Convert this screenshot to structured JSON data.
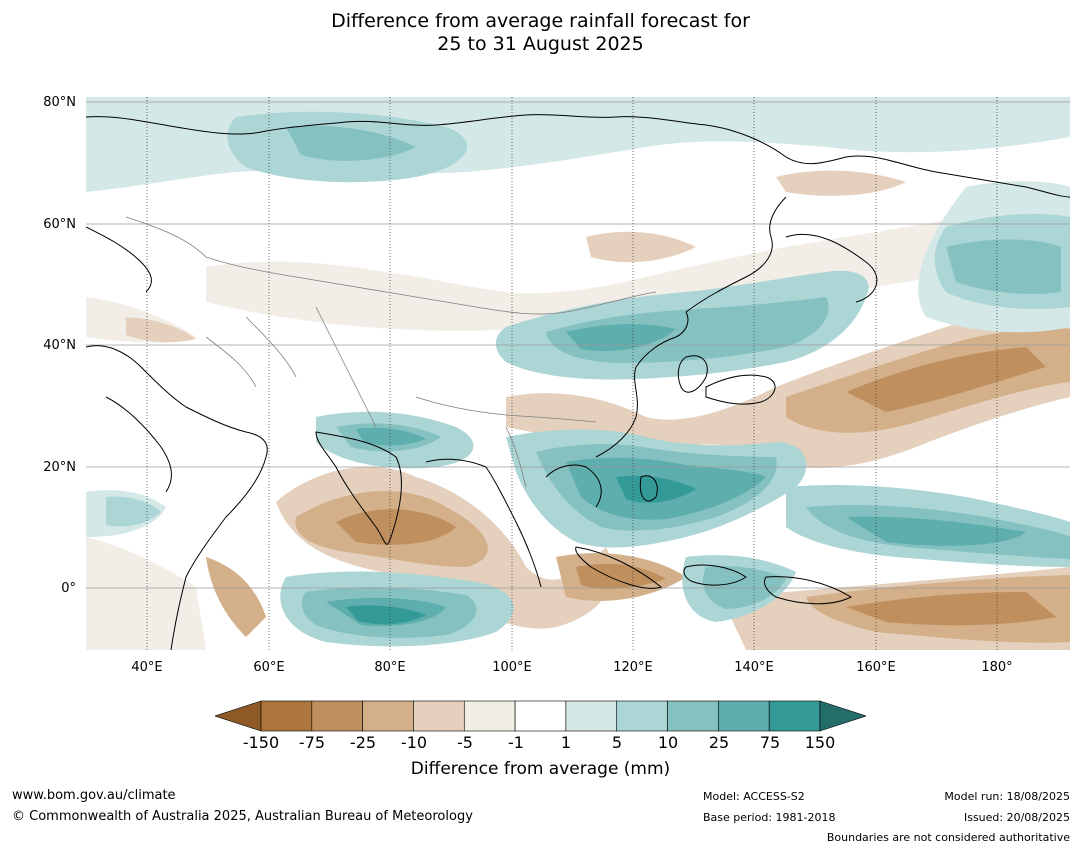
{
  "title": {
    "line1": "Difference from average rainfall forecast for",
    "line2": "25 to 31 August 2025"
  },
  "map": {
    "lat_labels": [
      "80°N",
      "60°N",
      "40°N",
      "20°N",
      "0°"
    ],
    "lon_labels": [
      "40°E",
      "60°E",
      "80°E",
      "100°E",
      "120°E",
      "140°E",
      "160°E",
      "180°"
    ],
    "lat_range": [
      -10,
      80
    ],
    "lon_range": [
      30,
      192
    ]
  },
  "colorbar": {
    "title": "Difference from average (mm)",
    "ticks": [
      "-150",
      "-75",
      "-25",
      "-10",
      "-5",
      "-1",
      "1",
      "5",
      "10",
      "25",
      "75",
      "150"
    ],
    "colors": {
      "below_min": "#8f5a26",
      "bins": [
        "#ad763c",
        "#bf905e",
        "#d3b08a",
        "#e4d0bc",
        "#f2ede7",
        "#ffffff",
        "#d3e8e7",
        "#acd5d5",
        "#85c1c1",
        "#5daead",
        "#349a98"
      ],
      "above_max": "#236d6b"
    }
  },
  "footer": {
    "website": "www.bom.gov.au/climate",
    "copyright": "© Commonwealth of Australia 2025, Australian Bureau of Meteorology",
    "model": "Model: ACCESS-S2",
    "base_period": "Base period: 1981-2018",
    "model_run": "Model run: 18/08/2025",
    "issued": "Issued: 20/08/2025",
    "disclaimer": "Boundaries are not considered authoritative"
  }
}
